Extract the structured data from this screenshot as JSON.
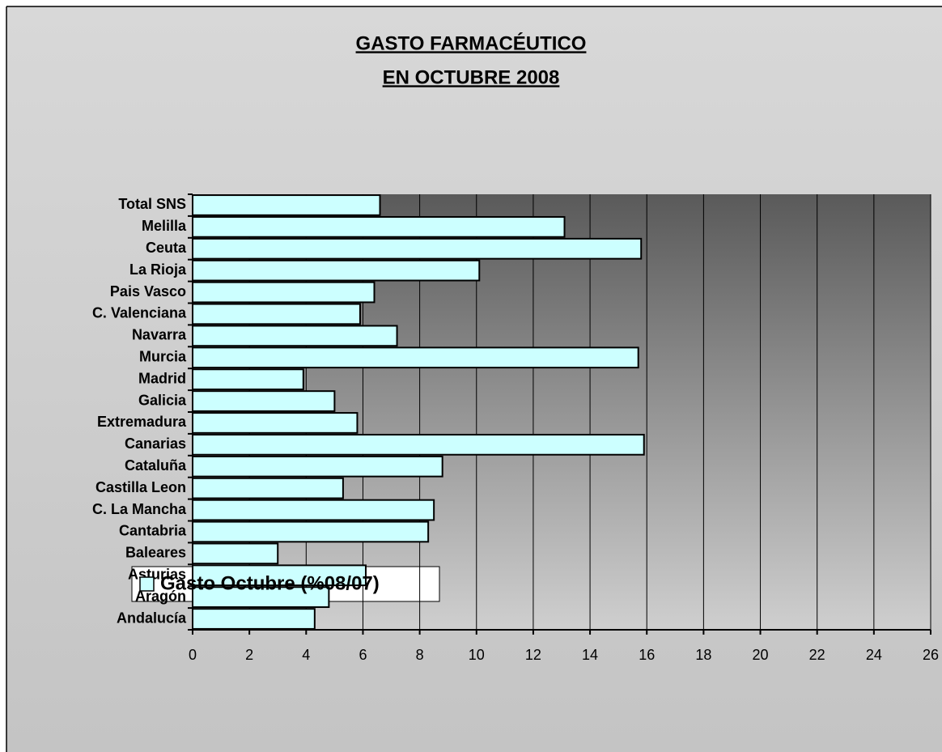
{
  "chart_data": {
    "type": "bar",
    "orientation": "horizontal",
    "title": [
      "GASTO FARMACÉUTICO",
      "EN OCTUBRE 2008"
    ],
    "categories": [
      "Andalucía",
      "Aragón",
      "Asturias",
      "Baleares",
      "Cantabria",
      "C. La Mancha",
      "Castilla Leon",
      "Cataluña",
      "Canarias",
      "Extremadura",
      "Galicia",
      "Madrid",
      "Murcia",
      "Navarra",
      "C. Valenciana",
      "Pais Vasco",
      "La Rioja",
      "Ceuta",
      "Melilla",
      "Total SNS"
    ],
    "series": [
      {
        "name": "Gasto Octubre (%08/07)",
        "color": "#ccffff",
        "values": [
          4.3,
          4.8,
          6.1,
          3.0,
          8.3,
          8.5,
          5.3,
          8.8,
          15.9,
          5.8,
          5.0,
          3.9,
          15.7,
          7.2,
          5.9,
          6.4,
          10.1,
          15.8,
          13.1,
          6.6
        ]
      }
    ],
    "xlim": [
      0,
      26
    ],
    "xticks": [
      0,
      2,
      4,
      6,
      8,
      10,
      12,
      14,
      16,
      18,
      20,
      22,
      24,
      26
    ],
    "grid": true,
    "legend": "bottom-left"
  }
}
